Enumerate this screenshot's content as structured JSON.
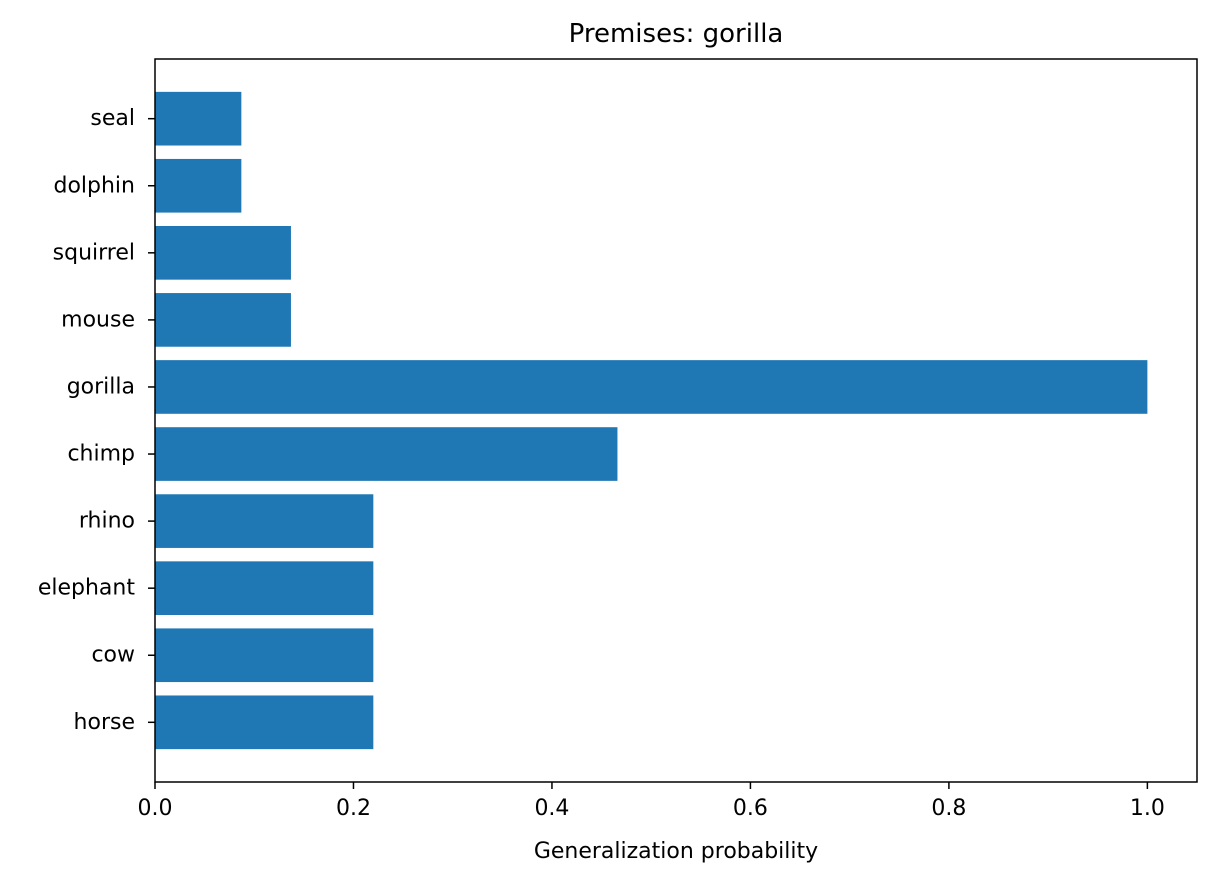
{
  "chart_data": {
    "type": "bar",
    "orientation": "horizontal",
    "title": "Premises: gorilla",
    "xlabel": "Generalization probability",
    "ylabel": "",
    "categories": [
      "horse",
      "cow",
      "elephant",
      "rhino",
      "chimp",
      "gorilla",
      "mouse",
      "squirrel",
      "dolphin",
      "seal"
    ],
    "values": [
      0.22,
      0.22,
      0.22,
      0.22,
      0.466,
      1.0,
      0.137,
      0.137,
      0.087,
      0.087
    ],
    "xlim": [
      0,
      1.05
    ],
    "xticks": [
      0.0,
      0.2,
      0.4,
      0.6,
      0.8,
      1.0
    ],
    "xtick_labels": [
      "0.0",
      "0.2",
      "0.4",
      "0.6",
      "0.8",
      "1.0"
    ],
    "grid": false,
    "bar_color": "#1f77b4"
  }
}
